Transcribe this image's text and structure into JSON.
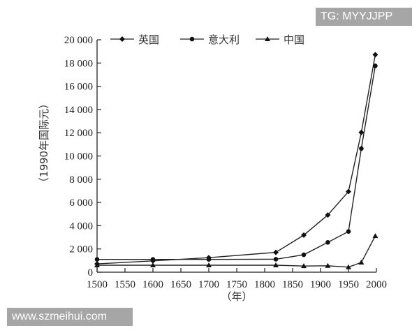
{
  "watermarks": {
    "top_right": "TG: MYYJJPP",
    "bottom_left": "www.szmeihui.com"
  },
  "legend": [
    {
      "label": "英国",
      "marker": "diamond"
    },
    {
      "label": "意大利",
      "marker": "circle"
    },
    {
      "label": "中国",
      "marker": "triangle"
    }
  ],
  "axes": {
    "ylabel": "（1990年国际元）",
    "xlabel": "（年）",
    "yticks": [
      "0",
      "2 000",
      "4 000",
      "6 000",
      "8 000",
      "10 000",
      "12 000",
      "14 000",
      "16 000",
      "18 000",
      "20 000"
    ],
    "xticks": [
      "1500",
      "1550",
      "1600",
      "1650",
      "1700",
      "1750",
      "1800",
      "1850",
      "1900",
      "1950",
      "2000"
    ]
  },
  "chart_data": {
    "type": "line",
    "title": "",
    "xlabel": "（年）",
    "ylabel": "（1990年国际元）",
    "xlim": [
      1500,
      2000
    ],
    "ylim": [
      0,
      20000
    ],
    "grid": false,
    "legend_position": "top",
    "x": [
      1500,
      1600,
      1700,
      1820,
      1870,
      1913,
      1950,
      1973,
      1998
    ],
    "series": [
      {
        "name": "英国",
        "marker": "diamond",
        "values": [
          714,
          974,
          1250,
          1706,
          3190,
          4921,
          6939,
          12025,
          18714
        ]
      },
      {
        "name": "意大利",
        "marker": "circle",
        "values": [
          1100,
          1100,
          1100,
          1117,
          1499,
          2564,
          3502,
          10643,
          17759
        ]
      },
      {
        "name": "中国",
        "marker": "triangle",
        "values": [
          600,
          600,
          600,
          600,
          530,
          552,
          439,
          839,
          3117
        ]
      }
    ]
  }
}
